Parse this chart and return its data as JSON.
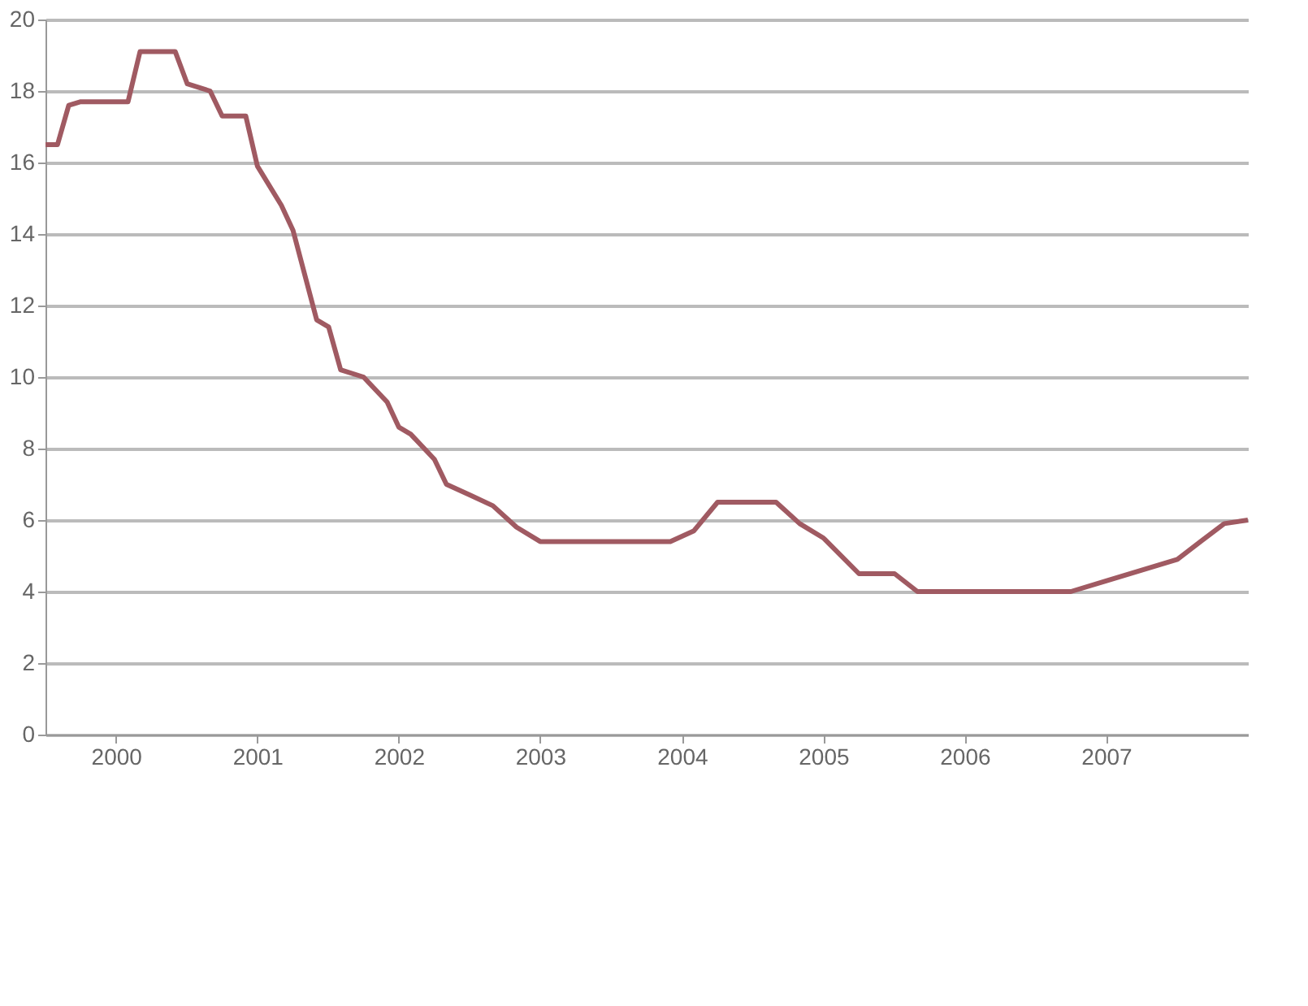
{
  "chart_data": {
    "type": "line",
    "x": [
      "2000-01",
      "2000-02",
      "2000-03",
      "2000-04",
      "2000-08",
      "2000-09",
      "2000-12",
      "2001-01",
      "2001-03",
      "2001-04",
      "2001-06",
      "2001-07",
      "2001-09",
      "2001-10",
      "2001-12",
      "2002-01",
      "2002-02",
      "2002-04",
      "2002-06",
      "2002-07",
      "2002-08",
      "2002-10",
      "2002-11",
      "2003-01",
      "2003-03",
      "2003-05",
      "2003-07",
      "2004-06",
      "2004-08",
      "2004-10",
      "2005-03",
      "2005-05",
      "2005-07",
      "2005-10",
      "2006-01",
      "2006-03",
      "2007-04",
      "2007-07",
      "2007-10",
      "2008-01",
      "2008-03",
      "2008-05",
      "2008-07"
    ],
    "series": [
      {
        "color": "#a05a62",
        "values": [
          16.5,
          16.5,
          17.6,
          17.7,
          17.7,
          19.1,
          19.1,
          18.2,
          18.0,
          17.3,
          17.3,
          15.9,
          14.8,
          14.1,
          11.6,
          11.4,
          10.2,
          10.0,
          9.3,
          8.6,
          8.4,
          7.7,
          7.0,
          6.7,
          6.4,
          5.8,
          5.4,
          5.4,
          5.7,
          6.5,
          6.5,
          5.9,
          5.5,
          4.5,
          4.5,
          4.0,
          4.0,
          4.3,
          4.6,
          4.9,
          5.4,
          5.9,
          6.0
        ]
      }
    ],
    "xlim": [
      "2000-01",
      "2008-07"
    ],
    "xticks": [
      {
        "value": "2000-07",
        "label": "2000"
      },
      {
        "value": "2001-07",
        "label": "2001"
      },
      {
        "value": "2002-07",
        "label": "2002"
      },
      {
        "value": "2003-07",
        "label": "2003"
      },
      {
        "value": "2004-07",
        "label": "2004"
      },
      {
        "value": "2005-07",
        "label": "2005"
      },
      {
        "value": "2006-07",
        "label": "2006"
      },
      {
        "value": "2007-07",
        "label": "2007"
      }
    ],
    "ylim": [
      0,
      20
    ],
    "yticks": [
      0,
      2,
      4,
      6,
      8,
      10,
      12,
      14,
      16,
      18,
      20
    ],
    "grid": "y",
    "marker": "none",
    "line_style": "solid"
  }
}
